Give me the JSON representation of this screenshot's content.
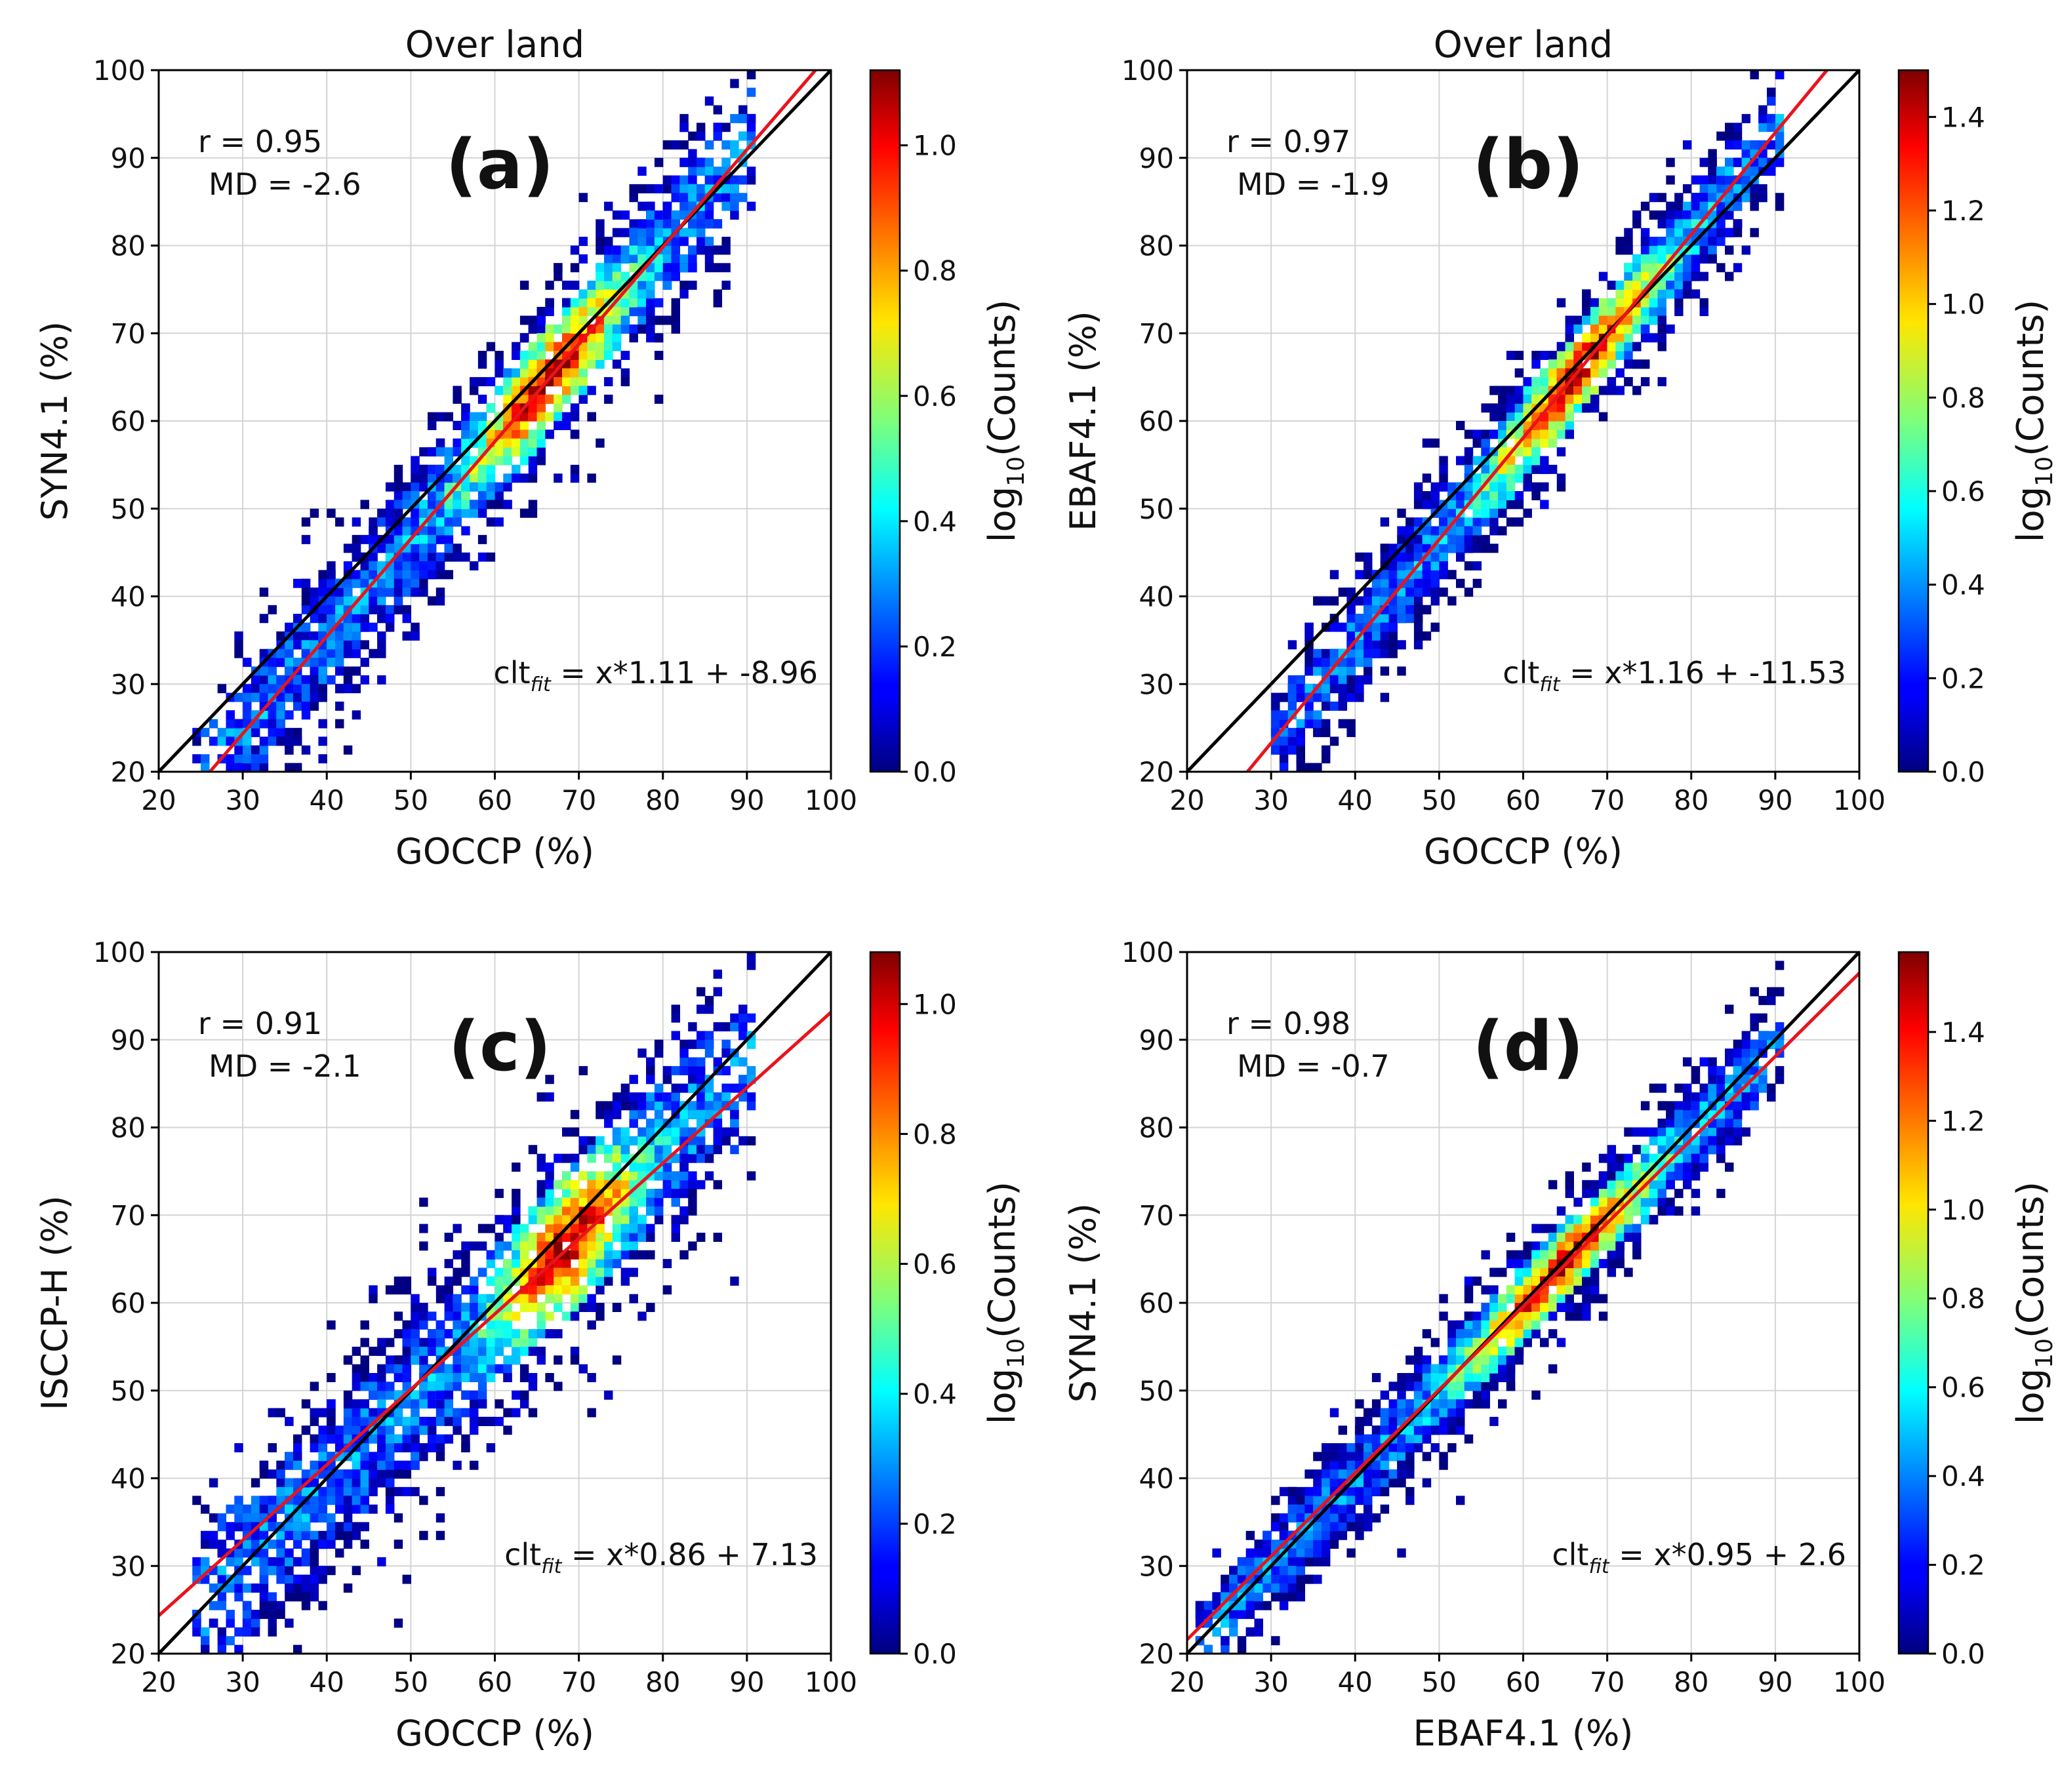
{
  "chart_data": [
    {
      "type": "heatmap",
      "panel_label": "(a)",
      "title": "Over land",
      "xlabel": "GOCCP (%)",
      "ylabel": "SYN4.1 (%)",
      "xlim": [
        20,
        100
      ],
      "ylim": [
        20,
        100
      ],
      "xticks": [
        20,
        30,
        40,
        50,
        60,
        70,
        80,
        90,
        100
      ],
      "yticks": [
        20,
        30,
        40,
        50,
        60,
        70,
        80,
        90,
        100
      ],
      "stats": {
        "r_text": "r = 0.95",
        "md_text": "MD = -2.6"
      },
      "fit": {
        "prefix": "clt",
        "sub": "fit",
        "suffix": " = x*1.11 + -8.96",
        "slope": 1.11,
        "intercept": -8.96
      },
      "one_to_one": true,
      "colorbar": {
        "label_pre": "log",
        "label_sub": "10",
        "label_post": "(Counts)",
        "min": 0.0,
        "max": 1.12,
        "ticks": [
          "0.0",
          "0.2",
          "0.4",
          "0.6",
          "0.8",
          "1.0"
        ]
      },
      "density": {
        "slope": 1.11,
        "intercept": -8.96,
        "x_range": [
          24,
          90
        ],
        "spread": 4.5,
        "peak_x": 66,
        "peak_width": 9,
        "seed": 11
      }
    },
    {
      "type": "heatmap",
      "panel_label": "(b)",
      "title": "Over land",
      "xlabel": "GOCCP (%)",
      "ylabel": "EBAF4.1 (%)",
      "xlim": [
        20,
        100
      ],
      "ylim": [
        20,
        100
      ],
      "xticks": [
        20,
        30,
        40,
        50,
        60,
        70,
        80,
        90,
        100
      ],
      "yticks": [
        20,
        30,
        40,
        50,
        60,
        70,
        80,
        90,
        100
      ],
      "stats": {
        "r_text": "r = 0.97",
        "md_text": "MD = -1.9"
      },
      "fit": {
        "prefix": "clt",
        "sub": "fit",
        "suffix": " = x*1.16 + -11.53",
        "slope": 1.16,
        "intercept": -11.53
      },
      "one_to_one": true,
      "colorbar": {
        "label_pre": "log",
        "label_sub": "10",
        "label_post": "(Counts)",
        "min": 0.0,
        "max": 1.5,
        "ticks": [
          "0.0",
          "0.2",
          "0.4",
          "0.6",
          "0.8",
          "1.0",
          "1.2",
          "1.4"
        ]
      },
      "density": {
        "slope": 1.16,
        "intercept": -11.53,
        "x_range": [
          30,
          90
        ],
        "spread": 3.6,
        "peak_x": 66,
        "peak_width": 10,
        "seed": 23
      }
    },
    {
      "type": "heatmap",
      "panel_label": "(c)",
      "title": "",
      "xlabel": "GOCCP (%)",
      "ylabel": "ISCCP-H (%)",
      "xlim": [
        20,
        100
      ],
      "ylim": [
        20,
        100
      ],
      "xticks": [
        20,
        30,
        40,
        50,
        60,
        70,
        80,
        90,
        100
      ],
      "yticks": [
        20,
        30,
        40,
        50,
        60,
        70,
        80,
        90,
        100
      ],
      "stats": {
        "r_text": "r = 0.91",
        "md_text": "MD = -2.1"
      },
      "fit": {
        "prefix": "clt",
        "sub": "fit",
        "suffix": " = x*0.86 + 7.13",
        "slope": 0.86,
        "intercept": 7.13
      },
      "one_to_one": true,
      "colorbar": {
        "label_pre": "log",
        "label_sub": "10",
        "label_post": "(Counts)",
        "min": 0.0,
        "max": 1.08,
        "ticks": [
          "0.0",
          "0.2",
          "0.4",
          "0.6",
          "0.8",
          "1.0"
        ]
      },
      "density": {
        "slope": 0.95,
        "intercept": 1.5,
        "x_range": [
          24,
          90
        ],
        "spread": 5.8,
        "peak_x": 68,
        "peak_width": 8,
        "seed": 37
      }
    },
    {
      "type": "heatmap",
      "panel_label": "(d)",
      "title": "",
      "xlabel": "EBAF4.1 (%)",
      "ylabel": "SYN4.1 (%)",
      "xlim": [
        20,
        100
      ],
      "ylim": [
        20,
        100
      ],
      "xticks": [
        20,
        30,
        40,
        50,
        60,
        70,
        80,
        90,
        100
      ],
      "yticks": [
        20,
        30,
        40,
        50,
        60,
        70,
        80,
        90,
        100
      ],
      "stats": {
        "r_text": "r = 0.98",
        "md_text": "MD = -0.7"
      },
      "fit": {
        "prefix": "clt",
        "sub": "fit",
        "suffix": " = x*0.95 + 2.6",
        "slope": 0.95,
        "intercept": 2.6
      },
      "one_to_one": true,
      "colorbar": {
        "label_pre": "log",
        "label_sub": "10",
        "label_post": "(Counts)",
        "min": 0.0,
        "max": 1.58,
        "ticks": [
          "0.0",
          "0.2",
          "0.4",
          "0.6",
          "0.8",
          "1.0",
          "1.2",
          "1.4"
        ]
      },
      "density": {
        "slope": 0.99,
        "intercept": 0.2,
        "x_range": [
          21,
          90
        ],
        "spread": 3.2,
        "peak_x": 64,
        "peak_width": 11,
        "seed": 53
      }
    }
  ],
  "colors": {
    "fit_line": "#e8141c",
    "one_to_one_line": "#000000",
    "grid": "#d4d4d4"
  }
}
